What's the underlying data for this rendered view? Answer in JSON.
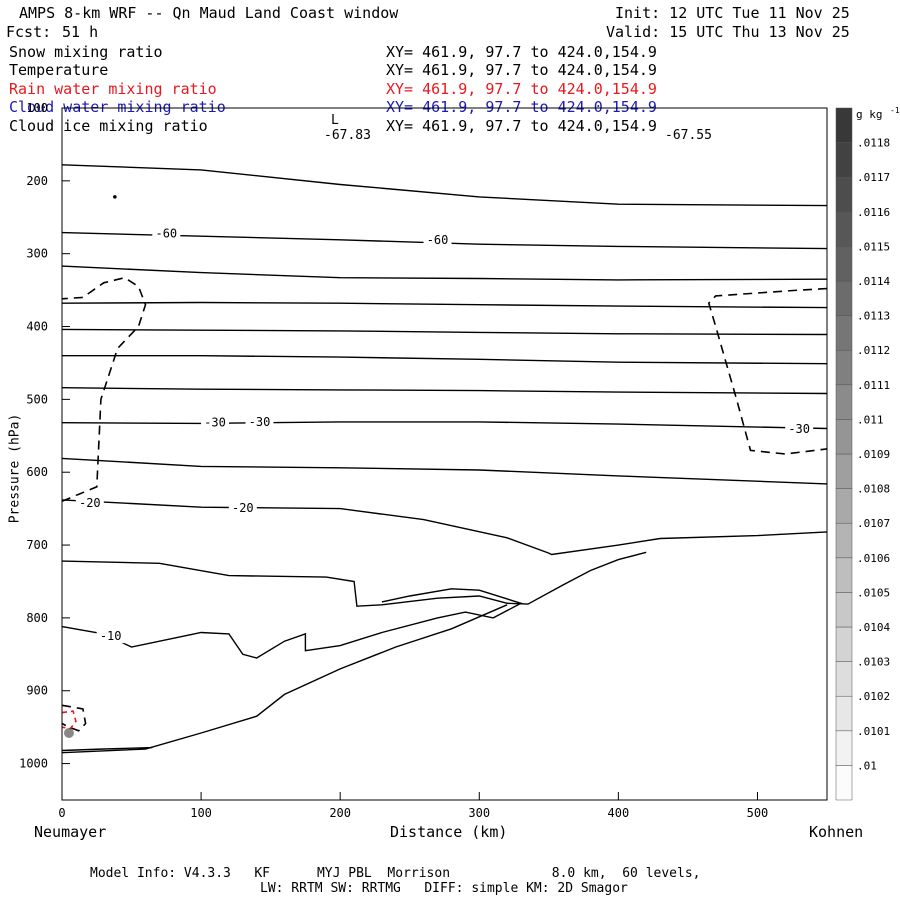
{
  "header": {
    "title": "AMPS 8-km WRF -- Qn Maud Land Coast window",
    "init": "Init: 12 UTC Tue 11 Nov 25",
    "fcst_label": "Fcst:",
    "fcst_value": "51 h",
    "valid": "Valid: 15 UTC Thu 13 Nov 25"
  },
  "fields": [
    {
      "name": "Snow mixing ratio",
      "xy": "XY= 461.9, 97.7 to 424.0,154.9",
      "color": "#000000"
    },
    {
      "name": "Temperature",
      "xy": "XY= 461.9, 97.7 to 424.0,154.9",
      "color": "#000000"
    },
    {
      "name": "Rain water mixing ratio",
      "xy": "XY= 461.9, 97.7 to 424.0,154.9",
      "color": "#e8181e"
    },
    {
      "name": "Cloud water mixing ratio",
      "xy": "XY= 461.9, 97.7 to 424.0,154.9",
      "color": "#1a1ab8"
    },
    {
      "name": "Cloud ice mixing ratio",
      "xy": "XY= 461.9, 97.7 to 424.0,154.9",
      "color": "#000000"
    }
  ],
  "annotations": {
    "low_marker": "L",
    "min_left": "-67.83",
    "min_right": "-67.55"
  },
  "footer": {
    "line1": "Model Info: V4.3.3   KF      MYJ PBL  Morrison             8.0 km,  60 levels,",
    "line2": "LW: RRTM SW: RRTMG   DIFF: simple KM: 2D Smagor"
  },
  "chart_data": {
    "type": "contour",
    "xlabel": "Distance (km)",
    "ylabel": "Pressure (hPa)",
    "x_start_label": "Neumayer",
    "x_end_label": "Kohnen",
    "xlim": [
      0,
      550
    ],
    "ylim": [
      1050,
      100
    ],
    "xticks": [
      0,
      100,
      200,
      300,
      400,
      500
    ],
    "yticks": [
      100,
      200,
      300,
      400,
      500,
      600,
      700,
      800,
      900,
      1000
    ],
    "colorbar": {
      "unit": "g kg",
      "unit_exp": "-1",
      "levels": [
        ".01",
        ".0101",
        ".0102",
        ".0103",
        ".0104",
        ".0105",
        ".0106",
        ".0107",
        ".0108",
        ".0109",
        ".011",
        ".0111",
        ".0112",
        ".0113",
        ".0114",
        ".0115",
        ".0116",
        ".0117",
        ".0118"
      ]
    },
    "isotherms": [
      {
        "label": "",
        "points": [
          [
            0,
            178
          ],
          [
            100,
            185
          ],
          [
            200,
            205
          ],
          [
            300,
            222
          ],
          [
            400,
            232
          ],
          [
            550,
            234
          ]
        ]
      },
      {
        "label": "-60",
        "label_at": [
          75,
          272
        ],
        "label2": "-60",
        "label2_at": [
          270,
          281
        ],
        "points": [
          [
            0,
            271
          ],
          [
            100,
            276
          ],
          [
            200,
            281
          ],
          [
            300,
            287
          ],
          [
            400,
            290
          ],
          [
            550,
            293
          ]
        ]
      },
      {
        "label": "",
        "points": [
          [
            0,
            317
          ],
          [
            100,
            326
          ],
          [
            200,
            333
          ],
          [
            300,
            334
          ],
          [
            400,
            336
          ],
          [
            550,
            335
          ]
        ]
      },
      {
        "label": "",
        "points": [
          [
            0,
            368
          ],
          [
            100,
            367
          ],
          [
            200,
            368
          ],
          [
            300,
            370
          ],
          [
            400,
            372
          ],
          [
            550,
            374
          ]
        ]
      },
      {
        "label": "",
        "points": [
          [
            0,
            404
          ],
          [
            100,
            405
          ],
          [
            200,
            406
          ],
          [
            300,
            408
          ],
          [
            400,
            410
          ],
          [
            550,
            411
          ]
        ]
      },
      {
        "label": "",
        "points": [
          [
            0,
            440
          ],
          [
            100,
            440
          ],
          [
            200,
            442
          ],
          [
            300,
            445
          ],
          [
            400,
            449
          ],
          [
            550,
            451
          ]
        ]
      },
      {
        "label": "",
        "points": [
          [
            0,
            484
          ],
          [
            100,
            486
          ],
          [
            200,
            487
          ],
          [
            300,
            488
          ],
          [
            400,
            490
          ],
          [
            550,
            492
          ]
        ]
      },
      {
        "label": "-30",
        "label_at": [
          110,
          532
        ],
        "label2": "-30",
        "label2_at": [
          142,
          531
        ],
        "label3": "-30",
        "label3_at": [
          530,
          541
        ],
        "points": [
          [
            0,
            532
          ],
          [
            100,
            533
          ],
          [
            200,
            531
          ],
          [
            300,
            531
          ],
          [
            400,
            534
          ],
          [
            550,
            540
          ]
        ]
      },
      {
        "label": "",
        "points": [
          [
            0,
            581
          ],
          [
            100,
            592
          ],
          [
            200,
            594
          ],
          [
            300,
            597
          ],
          [
            400,
            605
          ],
          [
            550,
            616
          ]
        ]
      },
      {
        "label": "-20",
        "label_at": [
          20,
          642
        ],
        "label2": "-20",
        "label2_at": [
          130,
          649
        ],
        "points": [
          [
            0,
            638
          ],
          [
            50,
            643
          ],
          [
            100,
            648
          ],
          [
            200,
            650
          ],
          [
            260,
            665
          ],
          [
            320,
            690
          ],
          [
            350,
            711
          ],
          [
            352,
            713
          ],
          [
            400,
            700
          ],
          [
            430,
            691
          ],
          [
            500,
            687
          ],
          [
            550,
            682
          ]
        ]
      },
      {
        "label": "",
        "points": [
          [
            0,
            722
          ],
          [
            70,
            725
          ],
          [
            120,
            742
          ],
          [
            190,
            744
          ],
          [
            210,
            750
          ],
          [
            212,
            784
          ],
          [
            230,
            782
          ],
          [
            270,
            773
          ],
          [
            300,
            770
          ],
          [
            320,
            780
          ],
          [
            335,
            781
          ],
          [
            360,
            755
          ],
          [
            380,
            735
          ],
          [
            400,
            720
          ],
          [
            420,
            710
          ]
        ]
      },
      {
        "label": "-10",
        "label_at": [
          35,
          825
        ],
        "points": [
          [
            0,
            812
          ],
          [
            30,
            822
          ],
          [
            50,
            840
          ],
          [
            100,
            820
          ],
          [
            120,
            822
          ],
          [
            130,
            850
          ],
          [
            140,
            855
          ],
          [
            160,
            832
          ],
          [
            175,
            822
          ],
          [
            175,
            845
          ],
          [
            200,
            838
          ],
          [
            230,
            820
          ],
          [
            270,
            800
          ],
          [
            290,
            792
          ],
          [
            310,
            800
          ],
          [
            330,
            780
          ],
          [
            300,
            762
          ],
          [
            280,
            760
          ],
          [
            250,
            770
          ],
          [
            230,
            778
          ]
        ]
      },
      {
        "label": "",
        "points": [
          [
            0,
            985
          ],
          [
            60,
            980
          ],
          [
            100,
            958
          ],
          [
            140,
            935
          ],
          [
            160,
            905
          ],
          [
            200,
            870
          ],
          [
            240,
            840
          ],
          [
            280,
            815
          ],
          [
            320,
            782
          ]
        ]
      },
      {
        "label": "",
        "points": [
          [
            0,
            982
          ],
          [
            30,
            980
          ],
          [
            65,
            978
          ]
        ]
      }
    ],
    "snow_contours": [
      {
        "points": [
          [
            0,
            640
          ],
          [
            25,
            620
          ],
          [
            28,
            500
          ],
          [
            40,
            430
          ],
          [
            55,
            400
          ],
          [
            60,
            370
          ],
          [
            55,
            345
          ],
          [
            45,
            333
          ],
          [
            30,
            340
          ],
          [
            15,
            360
          ],
          [
            0,
            362
          ]
        ]
      },
      {
        "points": [
          [
            550,
            348
          ],
          [
            530,
            350
          ],
          [
            500,
            354
          ],
          [
            470,
            358
          ],
          [
            465,
            368
          ],
          [
            470,
            400
          ],
          [
            485,
            500
          ],
          [
            495,
            570
          ],
          [
            520,
            575
          ],
          [
            550,
            568
          ]
        ]
      },
      {
        "points": [
          [
            0,
            920
          ],
          [
            15,
            925
          ],
          [
            17,
            945
          ],
          [
            12,
            955
          ],
          [
            5,
            950
          ],
          [
            0,
            945
          ]
        ]
      }
    ],
    "rain_contours": [
      {
        "points": [
          [
            0,
            930
          ],
          [
            8,
            928
          ],
          [
            10,
            942
          ],
          [
            6,
            952
          ],
          [
            0,
            950
          ]
        ]
      }
    ],
    "cloud_ice_points": [
      {
        "x": 38,
        "p": 222
      }
    ]
  }
}
